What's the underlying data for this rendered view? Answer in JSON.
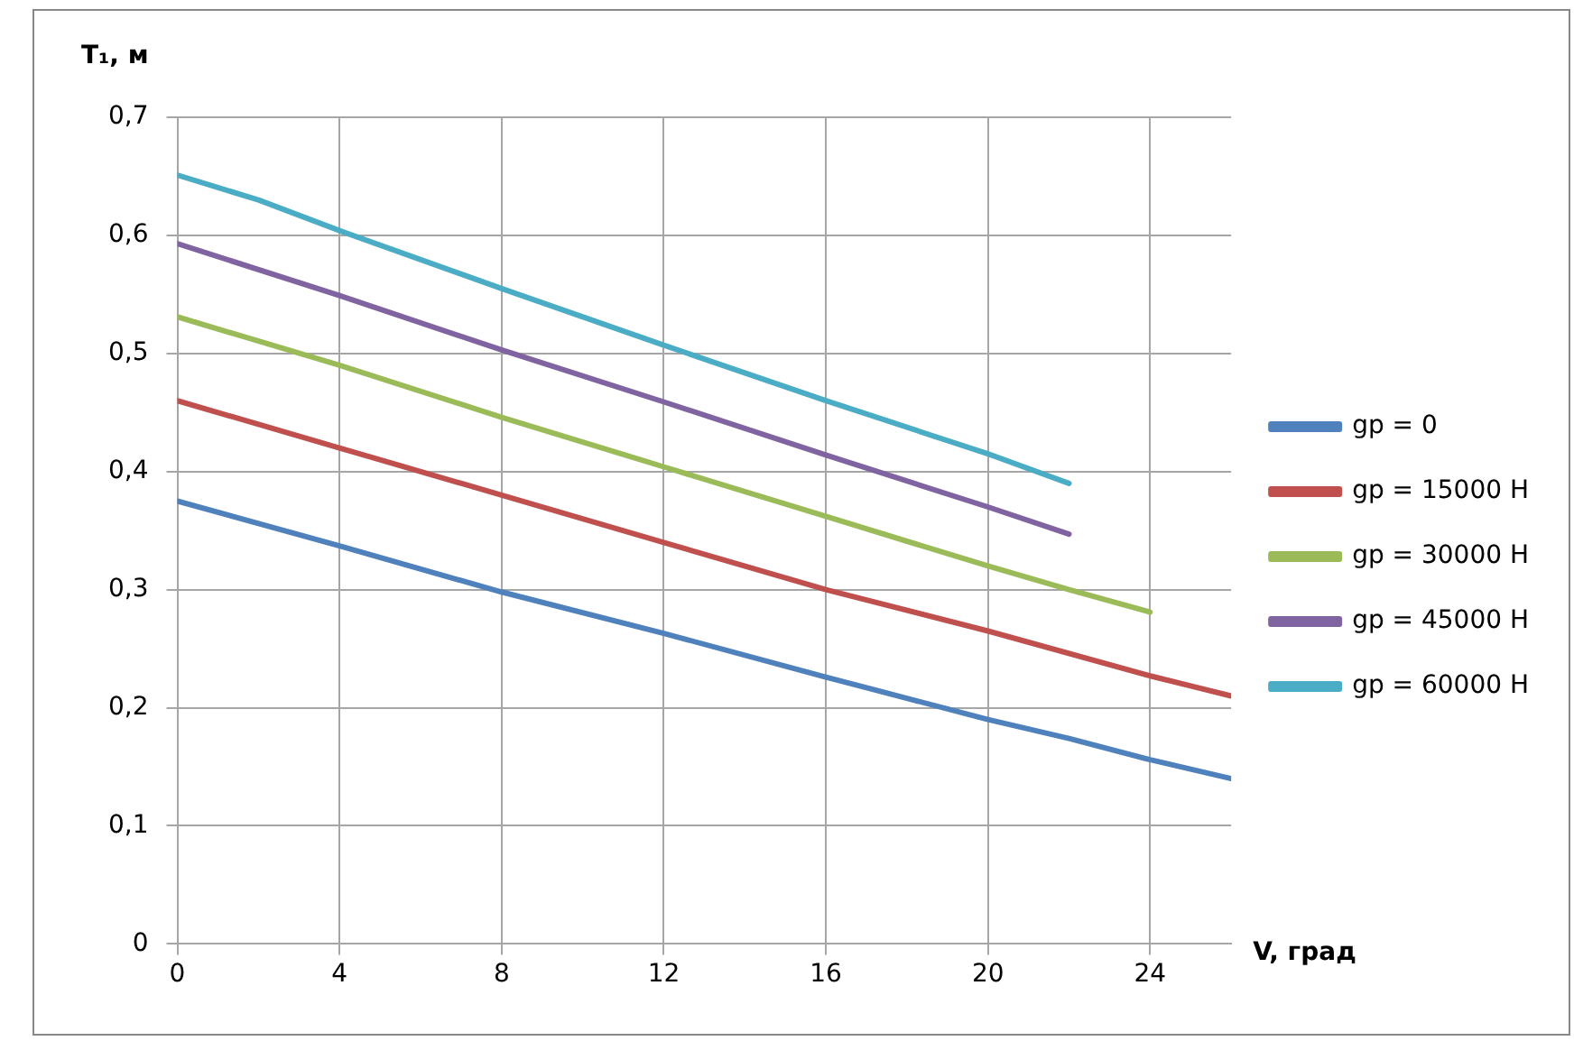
{
  "chart_data": {
    "type": "line",
    "xlabel": "V, град",
    "ylabel": "T₁, м",
    "xlim": [
      0,
      26
    ],
    "xticks": [
      0,
      4,
      8,
      12,
      16,
      20,
      24
    ],
    "ylim": [
      0,
      0.7
    ],
    "yticks": [
      0,
      {
        "value": 0.1,
        "label": "0,1"
      },
      {
        "value": 0.2,
        "label": "0,2"
      },
      {
        "value": 0.3,
        "label": "0,3"
      },
      {
        "value": 0.4,
        "label": "0,4"
      },
      {
        "value": 0.5,
        "label": "0,5"
      },
      {
        "value": 0.6,
        "label": "0,6"
      },
      {
        "value": 0.7,
        "label": "0,7"
      }
    ],
    "grid": true,
    "legend": "right",
    "marker": "none",
    "line_style": "solid",
    "series": [
      {
        "name": "gp = 0",
        "color": "#4f81bd",
        "x": [
          0,
          4,
          8,
          12,
          16,
          18,
          20,
          22,
          24,
          26
        ],
        "values": [
          0.375,
          0.337,
          0.298,
          0.263,
          0.226,
          0.208,
          0.19,
          0.174,
          0.156,
          0.14
        ]
      },
      {
        "name": "gp = 15000 Н",
        "color": "#c0504d",
        "x": [
          0,
          4,
          8,
          12,
          16,
          20,
          24,
          26
        ],
        "values": [
          0.46,
          0.42,
          0.38,
          0.34,
          0.3,
          0.265,
          0.227,
          0.21
        ]
      },
      {
        "name": "gp = 30000 Н",
        "color": "#9bbb59",
        "x": [
          0,
          4,
          8,
          12,
          16,
          20,
          22,
          24
        ],
        "values": [
          0.531,
          0.49,
          0.446,
          0.404,
          0.362,
          0.32,
          0.3,
          0.281
        ]
      },
      {
        "name": "gp = 45000 Н",
        "color": "#8064a2",
        "x": [
          0,
          4,
          8,
          12,
          16,
          20,
          22
        ],
        "values": [
          0.593,
          0.549,
          0.503,
          0.459,
          0.414,
          0.37,
          0.347
        ]
      },
      {
        "name": "gp = 60000 Н",
        "color": "#4bacc6",
        "x": [
          0,
          2,
          4,
          8,
          12,
          16,
          20,
          22
        ],
        "values": [
          0.651,
          0.63,
          0.604,
          0.555,
          0.507,
          0.46,
          0.415,
          0.39
        ]
      }
    ]
  }
}
